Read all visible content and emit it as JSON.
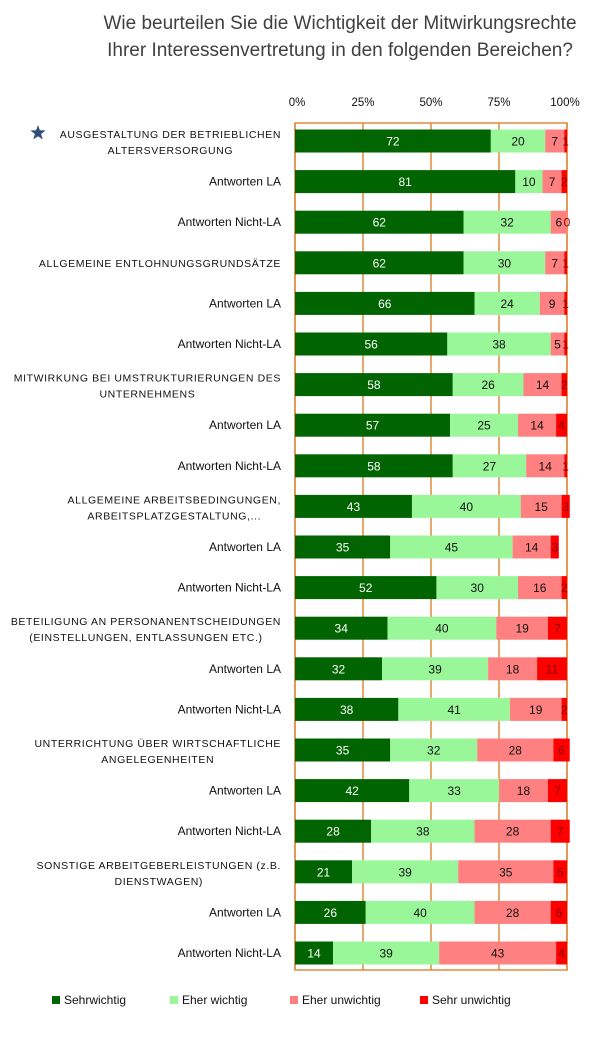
{
  "chart_data": {
    "type": "bar",
    "orientation": "horizontal",
    "stacked": true,
    "percent": true,
    "title": "Wie beurteilen Sie die Wichtigkeit der Mitwirkungsrechte Ihrer Interessenvertretung in den folgenden Bereichen?",
    "title_lines": [
      "Wie beurteilen Sie die Wichtigkeit der Mitwirkungsrechte",
      "Ihrer Interessenvertretung in den folgenden Bereichen?"
    ],
    "xlabel": "",
    "ylabel": "",
    "xlim": [
      0,
      100
    ],
    "x_ticks": [
      "0%",
      "25%",
      "50%",
      "75%",
      "100%"
    ],
    "x_tick_values": [
      0,
      25,
      50,
      75,
      100
    ],
    "x_axis_position": "top",
    "grid": true,
    "legend_position": "bottom",
    "highlight_marker": "star",
    "series": [
      {
        "name": "Sehr wichtig",
        "color": "#006400",
        "label_color": "#ffffff"
      },
      {
        "name": "Eher wichtig",
        "color": "#99f799",
        "label_color": "#111111"
      },
      {
        "name": "Eher unwichtig",
        "color": "#ff8080",
        "label_color": "#111111"
      },
      {
        "name": "Sehr unwichtig",
        "color": "#ff0000",
        "label_color": "#8b0000"
      }
    ],
    "legend": [
      {
        "label": "Sehrwichtig"
      },
      {
        "label": "Eher wichtig"
      },
      {
        "label": "Eher unwichtig"
      },
      {
        "label": "Sehr unwichtig"
      }
    ],
    "categories": [
      {
        "label_lines": [
          "AUSGESTALTUNG DER BETRIEBLICHEN",
          "ALTERSVERSORGUNG"
        ],
        "kind": "category",
        "starred": true,
        "values": [
          72,
          20,
          7,
          1
        ]
      },
      {
        "label_lines": [
          "Antworten LA"
        ],
        "kind": "sub",
        "values": [
          81,
          10,
          7,
          2
        ]
      },
      {
        "label_lines": [
          "Antworten Nicht-LA"
        ],
        "kind": "sub",
        "values": [
          62,
          32,
          6,
          0
        ]
      },
      {
        "label_lines": [
          "ALLGEMEINE ENTLOHNUNGSGRUNDSÄTZE"
        ],
        "kind": "category",
        "values": [
          62,
          30,
          7,
          1
        ]
      },
      {
        "label_lines": [
          "Antworten LA"
        ],
        "kind": "sub",
        "values": [
          66,
          24,
          9,
          1
        ]
      },
      {
        "label_lines": [
          "Antworten Nicht-LA"
        ],
        "kind": "sub",
        "values": [
          56,
          38,
          5,
          1
        ]
      },
      {
        "label_lines": [
          "MITWIRKUNG BEI UMSTRUKTURIERUNGEN DES",
          "UNTERNEHMENS"
        ],
        "kind": "category",
        "values": [
          58,
          26,
          14,
          2
        ]
      },
      {
        "label_lines": [
          "Antworten LA"
        ],
        "kind": "sub",
        "values": [
          57,
          25,
          14,
          4
        ]
      },
      {
        "label_lines": [
          "Antworten Nicht-LA"
        ],
        "kind": "sub",
        "values": [
          58,
          27,
          14,
          1
        ]
      },
      {
        "label_lines": [
          "ALLGEMEINE ARBEITSBEDINGUNGEN,",
          "ARBEITSPLATZGESTALTUNG,..."
        ],
        "kind": "category",
        "values": [
          43,
          40,
          15,
          3
        ]
      },
      {
        "label_lines": [
          "Antworten LA"
        ],
        "kind": "sub",
        "values": [
          35,
          45,
          14,
          3
        ]
      },
      {
        "label_lines": [
          "Antworten Nicht-LA"
        ],
        "kind": "sub",
        "values": [
          52,
          30,
          16,
          2
        ]
      },
      {
        "label_lines": [
          "BETEILIGUNG AN PERSONANENTSCHEIDUNGEN",
          "(EINSTELLUNGEN, ENTLASSUNGEN ETC.)"
        ],
        "kind": "category",
        "values": [
          34,
          40,
          19,
          7
        ]
      },
      {
        "label_lines": [
          "Antworten LA"
        ],
        "kind": "sub",
        "values": [
          32,
          39,
          18,
          11
        ]
      },
      {
        "label_lines": [
          "Antworten Nicht-LA"
        ],
        "kind": "sub",
        "values": [
          38,
          41,
          19,
          2
        ]
      },
      {
        "label_lines": [
          "UNTERRICHTUNG ÜBER WIRTSCHAFTLICHE",
          "ANGELEGENHEITEN"
        ],
        "kind": "category",
        "values": [
          35,
          32,
          28,
          6
        ]
      },
      {
        "label_lines": [
          "Antworten LA"
        ],
        "kind": "sub",
        "values": [
          42,
          33,
          18,
          7
        ]
      },
      {
        "label_lines": [
          "Antworten Nicht-LA"
        ],
        "kind": "sub",
        "values": [
          28,
          38,
          28,
          7
        ]
      },
      {
        "label_lines": [
          "SONSTIGE ARBEITGEBERLEISTUNGEN (z.B.",
          "DIENSTWAGEN)"
        ],
        "kind": "category",
        "values": [
          21,
          39,
          35,
          5
        ]
      },
      {
        "label_lines": [
          "Antworten LA"
        ],
        "kind": "sub",
        "values": [
          26,
          40,
          28,
          6
        ]
      },
      {
        "label_lines": [
          "Antworten Nicht-LA"
        ],
        "kind": "sub",
        "values": [
          14,
          39,
          43,
          4
        ]
      }
    ],
    "frame_color": "#e08a3c",
    "star_color": "#2e4d7b"
  }
}
